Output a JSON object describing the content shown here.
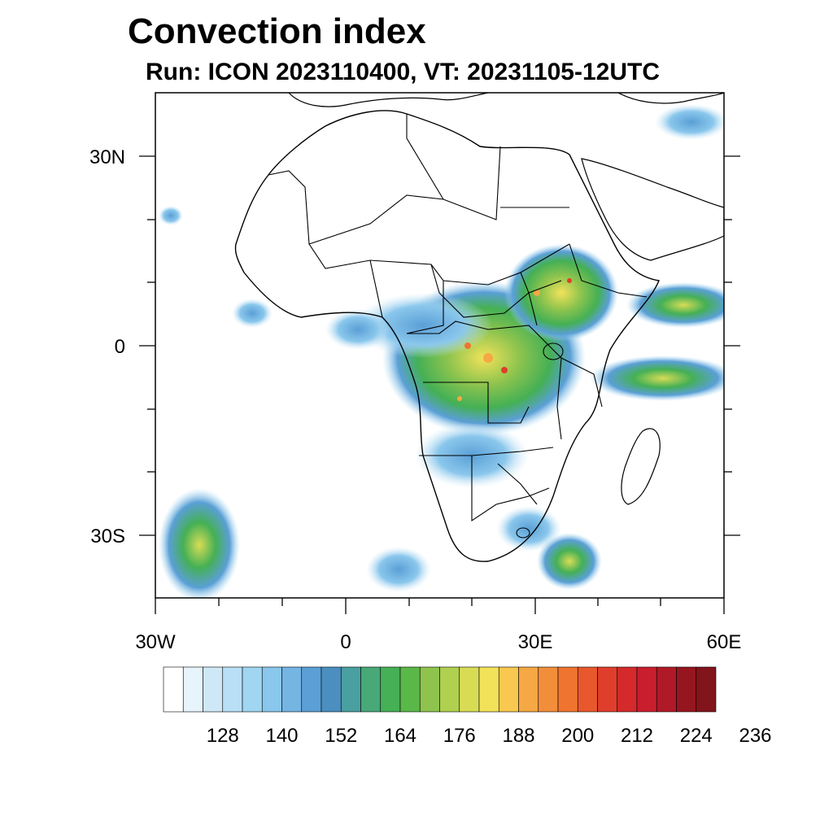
{
  "title": "Convection index",
  "subtitle": "Run: ICON 2023110400,  VT: 20231105-12UTC",
  "axes": {
    "lat_labels": [
      "30N",
      "0",
      "30S"
    ],
    "lon_labels": [
      "30W",
      "0",
      "30E",
      "60E"
    ]
  },
  "colorbar": {
    "labels": [
      "128",
      "140",
      "152",
      "164",
      "176",
      "188",
      "200",
      "212",
      "224",
      "236"
    ],
    "colors": [
      "#ffffff",
      "#e8f4fc",
      "#cfe8f8",
      "#b8dff5",
      "#a0d6f2",
      "#8ac7ec",
      "#74b5e4",
      "#5a9fd6",
      "#4a8fc0",
      "#4a9fa0",
      "#48a878",
      "#45b055",
      "#5ab848",
      "#8ec44e",
      "#b0d050",
      "#d8dc55",
      "#f2e25a",
      "#f8c850",
      "#f5a843",
      "#f28e3a",
      "#ef7430",
      "#e8582c",
      "#e03e2c",
      "#d42a2c",
      "#c81e2e",
      "#b01a28",
      "#961620",
      "#82141c"
    ]
  },
  "colors": {
    "land_outline": "#000000",
    "convection_low": "#8ac7ec",
    "convection_mid": "#45b055",
    "convection_high": "#f2e25a",
    "convection_peak": "#e03e2c"
  }
}
